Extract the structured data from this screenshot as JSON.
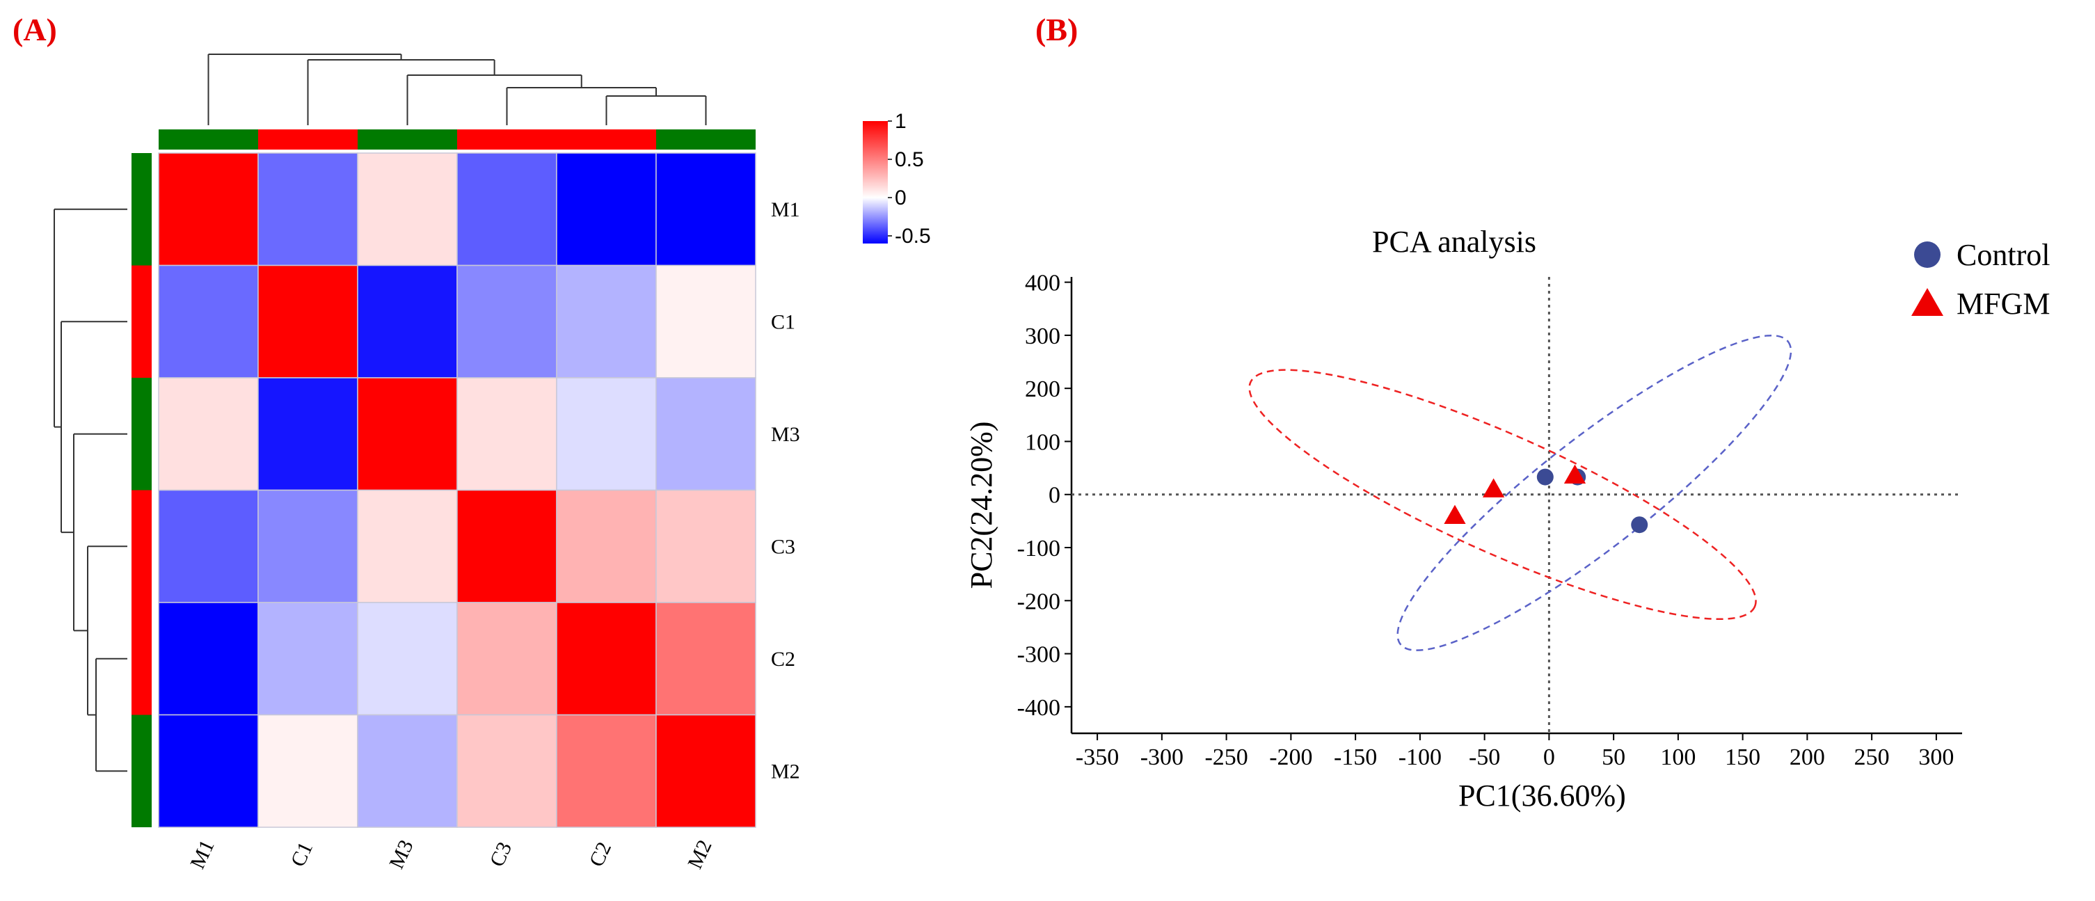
{
  "panels": {
    "a_label": "(A)",
    "b_label": "(B)"
  },
  "colors": {
    "panel_label": "#e60000",
    "group_control": "#ff0000",
    "group_mfgm": "#007a00",
    "heat_low": "#0000ff",
    "heat_mid": "#ffffff",
    "heat_high": "#ff0000",
    "control_point": "#3b4a94",
    "mfgm_point": "#ee0000",
    "control_ellipse": "#5a62c8",
    "mfgm_ellipse": "#ee2222"
  },
  "chart_data": [
    {
      "type": "heatmap",
      "title": "",
      "columns": [
        "M1",
        "C1",
        "M3",
        "C3",
        "C2",
        "M2"
      ],
      "rows": [
        "M1",
        "C1",
        "M3",
        "C3",
        "C2",
        "M2"
      ],
      "groups": {
        "M1": "MFGM",
        "M2": "MFGM",
        "M3": "MFGM",
        "C1": "Control",
        "C2": "Control",
        "C3": "Control"
      },
      "values": [
        [
          1.0,
          -0.35,
          0.12,
          -0.38,
          -0.6,
          -0.62
        ],
        [
          -0.35,
          1.0,
          -0.55,
          -0.28,
          -0.18,
          0.05
        ],
        [
          0.12,
          -0.55,
          1.0,
          0.12,
          -0.08,
          -0.18
        ],
        [
          -0.38,
          -0.28,
          0.12,
          1.0,
          0.3,
          0.22
        ],
        [
          -0.6,
          -0.18,
          -0.08,
          0.3,
          1.0,
          0.55
        ],
        [
          -0.62,
          0.05,
          -0.18,
          0.22,
          0.55,
          1.0
        ]
      ],
      "colorbar": {
        "range": [
          -0.6,
          1.0
        ],
        "ticks": [
          1,
          0.5,
          0,
          -0.5
        ],
        "tick_labels": [
          "1",
          "0.5",
          "0",
          "-0.5"
        ]
      },
      "dendrogram": "hierarchical clustering on rows and columns"
    },
    {
      "type": "scatter",
      "title": "PCA analysis",
      "xlabel": "PC1(36.60%)",
      "ylabel": "PC2(24.20%)",
      "xlim": [
        -370,
        320
      ],
      "ylim": [
        -450,
        410
      ],
      "xticks": [
        -350,
        -300,
        -250,
        -200,
        -150,
        -100,
        -50,
        0,
        50,
        100,
        150,
        200,
        250,
        300
      ],
      "yticks": [
        400,
        300,
        200,
        100,
        0,
        -100,
        -200,
        -300,
        -400
      ],
      "legend_position": "top-right",
      "series": [
        {
          "name": "Control",
          "marker": "circle",
          "points": [
            [
              -3,
              33
            ],
            [
              22,
              33
            ],
            [
              70,
              -57
            ]
          ],
          "ellipse": {
            "cx": 35,
            "cy": 3,
            "rx": 270,
            "ry": 60,
            "angle_deg": -38
          }
        },
        {
          "name": "MFGM",
          "marker": "triangle",
          "points": [
            [
              -73,
              -40
            ],
            [
              -43,
              10
            ],
            [
              20,
              36
            ]
          ],
          "ellipse": {
            "cx": -36,
            "cy": 0,
            "rx": 303,
            "ry": 65,
            "angle_deg": 24
          }
        }
      ]
    }
  ]
}
